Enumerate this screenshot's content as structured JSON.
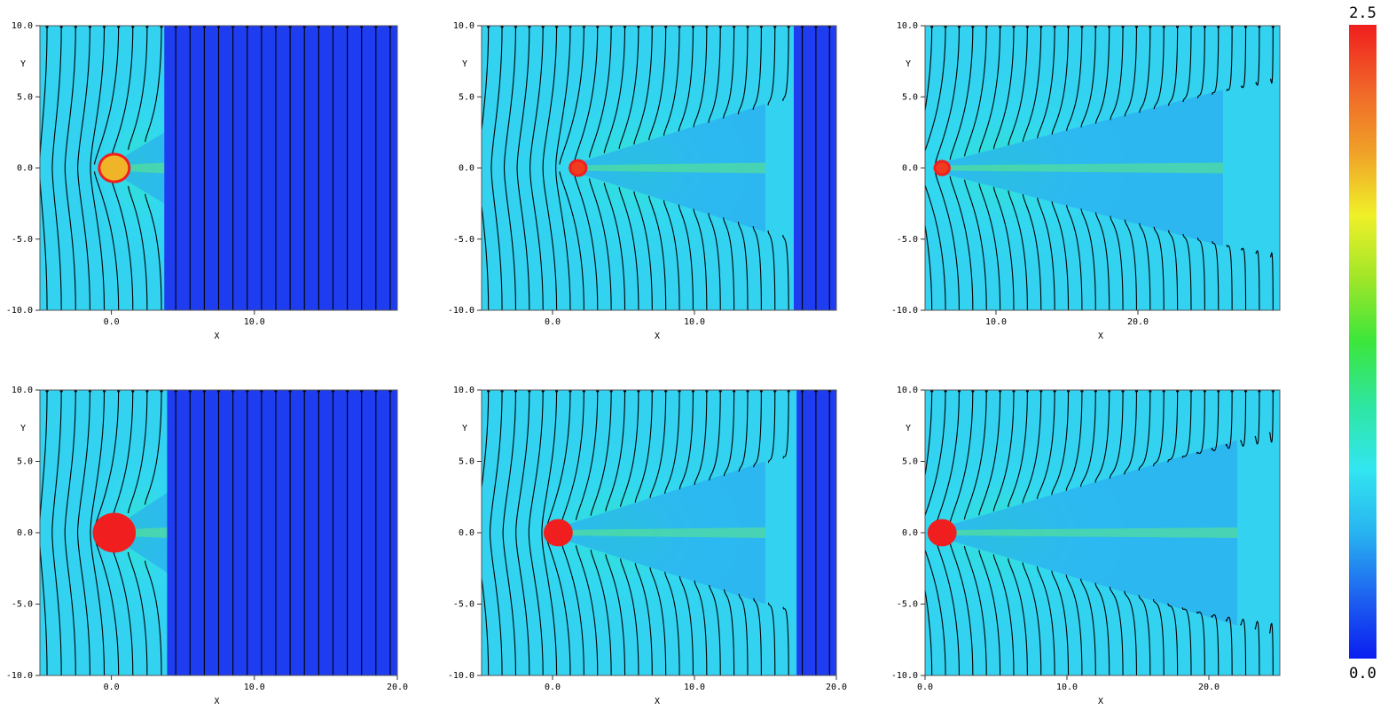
{
  "chart_data": {
    "type": "heatmap",
    "colorbar": {
      "min": 0.0,
      "max": 2.5,
      "min_label": "0.0",
      "max_label": "2.5",
      "colormap": [
        "#0a1ef0",
        "#1e64f0",
        "#28b4f0",
        "#32e6f0",
        "#2ee6a0",
        "#3ce63c",
        "#a0e628",
        "#f0f028",
        "#f0a028",
        "#f06428",
        "#f01e1e"
      ]
    },
    "panels": [
      {
        "row": 1,
        "col": 1,
        "xlabel": "X",
        "ylabel": "Y",
        "xlim": [
          -5,
          20
        ],
        "ylim": [
          -10,
          10
        ],
        "xticks": [
          "0.0",
          "10.0"
        ],
        "yticks": [
          "10.0",
          "5.0",
          "0.0",
          "-5.0",
          "-10.0"
        ],
        "front_x": 3.7,
        "body_x": 0.2,
        "body_r": 0.8,
        "body_color": "#f0b428",
        "wake_end": 3.7,
        "spread": 2.5,
        "field_color": "#32d2f0",
        "region_color": "#1e3cf0",
        "n_lines": 25
      },
      {
        "row": 1,
        "col": 2,
        "xlabel": "X",
        "ylabel": "Y",
        "xlim": [
          -5,
          20
        ],
        "ylim": [
          -10,
          10
        ],
        "xticks": [
          "0.0",
          "10.0"
        ],
        "yticks": [
          "10.0",
          "5.0",
          "0.0",
          "-5.0",
          "-10.0"
        ],
        "front_x": 17.0,
        "body_x": 1.8,
        "body_r": 0.4,
        "body_color": "#f03c1e",
        "wake_end": 15.0,
        "spread": 4.5,
        "field_color": "#32d2f0",
        "region_color": "#1e3cf0",
        "n_lines": 26
      },
      {
        "row": 1,
        "col": 3,
        "xlabel": "X",
        "ylabel": "Y",
        "xlim": [
          5,
          30
        ],
        "ylim": [
          -10,
          10
        ],
        "xticks": [
          "10.0",
          "20.0"
        ],
        "yticks": [
          "10.0",
          "5.0",
          "0.0",
          "-5.0",
          "-10.0"
        ],
        "front_x": 30.0,
        "body_x": 6.2,
        "body_r": 0.35,
        "body_color": "#f03c1e",
        "wake_end": 26.0,
        "spread": 5.5,
        "field_color": "#32d2f0",
        "region_color": "#1e3cf0",
        "n_lines": 26
      },
      {
        "row": 2,
        "col": 1,
        "xlabel": "X",
        "ylabel": "Y",
        "xlim": [
          -5,
          20
        ],
        "ylim": [
          -10,
          10
        ],
        "xticks": [
          "0.0",
          "10.0",
          "20.0"
        ],
        "yticks": [
          "10.0",
          "5.0",
          "0.0",
          "-5.0",
          "-10.0"
        ],
        "front_x": 3.9,
        "body_x": 0.2,
        "body_r": 1.1,
        "body_color": "#f01e1e",
        "wake_end": 3.9,
        "spread": 2.8,
        "field_color": "#32d2f0",
        "region_color": "#1e3cf0",
        "n_lines": 25
      },
      {
        "row": 2,
        "col": 2,
        "xlabel": "X",
        "ylabel": "Y",
        "xlim": [
          -5,
          20
        ],
        "ylim": [
          -10,
          10
        ],
        "xticks": [
          "0.0",
          "10.0",
          "20.0"
        ],
        "yticks": [
          "10.0",
          "5.0",
          "0.0",
          "-5.0",
          "-10.0"
        ],
        "front_x": 17.2,
        "body_x": 0.4,
        "body_r": 0.7,
        "body_color": "#f01e1e",
        "wake_end": 15.0,
        "spread": 5.0,
        "field_color": "#32d2f0",
        "region_color": "#1e3cf0",
        "n_lines": 26
      },
      {
        "row": 2,
        "col": 3,
        "xlabel": "X",
        "ylabel": "Y",
        "xlim": [
          0,
          25
        ],
        "ylim": [
          -10,
          10
        ],
        "xticks": [
          "0.0",
          "10.0",
          "20.0"
        ],
        "yticks": [
          "10.0",
          "5.0",
          "0.0",
          "-5.0",
          "-10.0"
        ],
        "front_x": 25.0,
        "body_x": 1.2,
        "body_r": 0.7,
        "body_color": "#f01e1e",
        "wake_end": 22.0,
        "spread": 6.5,
        "field_color": "#32d2f0",
        "region_color": "#1e3cf0",
        "n_lines": 26
      }
    ]
  }
}
